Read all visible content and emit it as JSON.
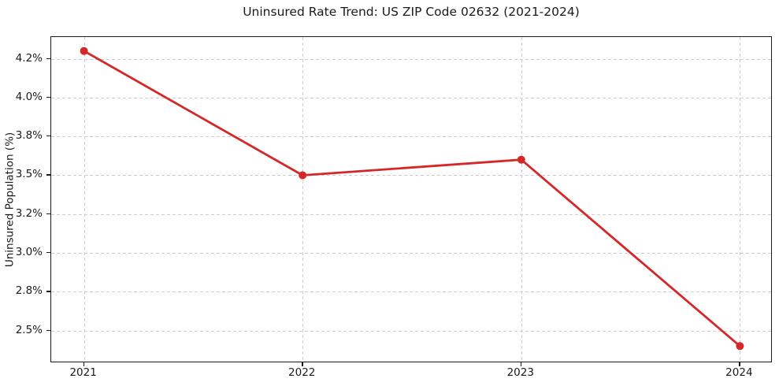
{
  "chart_data": {
    "type": "line",
    "title": "Uninsured Rate Trend: US ZIP Code 02632 (2021-2024)",
    "xlabel": "",
    "ylabel": "Uninsured Population (%)",
    "x": [
      2021,
      2022,
      2023,
      2024
    ],
    "series": [
      {
        "name": "Uninsured rate",
        "values": [
          4.3,
          3.5,
          3.6,
          2.4
        ]
      }
    ],
    "x_ticks": [
      {
        "value": 2021,
        "label": "2021"
      },
      {
        "value": 2022,
        "label": "2022"
      },
      {
        "value": 2023,
        "label": "2023"
      },
      {
        "value": 2024,
        "label": "2024"
      }
    ],
    "y_ticks": [
      {
        "value": 2.5,
        "label": "2.5%"
      },
      {
        "value": 2.75,
        "label": "2.8%"
      },
      {
        "value": 3.0,
        "label": "3.0%"
      },
      {
        "value": 3.25,
        "label": "3.2%"
      },
      {
        "value": 3.5,
        "label": "3.5%"
      },
      {
        "value": 3.75,
        "label": "3.8%"
      },
      {
        "value": 4.0,
        "label": "4.0%"
      },
      {
        "value": 4.25,
        "label": "4.2%"
      }
    ],
    "xlim": [
      2020.85,
      2024.15
    ],
    "ylim": [
      2.29,
      4.39
    ],
    "grid": true,
    "legend": "none",
    "colors": {
      "line": "#d62728",
      "marker": "#d62728",
      "grid": "#cdcdcd",
      "spine": "#1a1a1a",
      "text": "#1a1a1a",
      "background": "#ffffff"
    },
    "line_width": 2.8,
    "marker_radius": 5
  }
}
